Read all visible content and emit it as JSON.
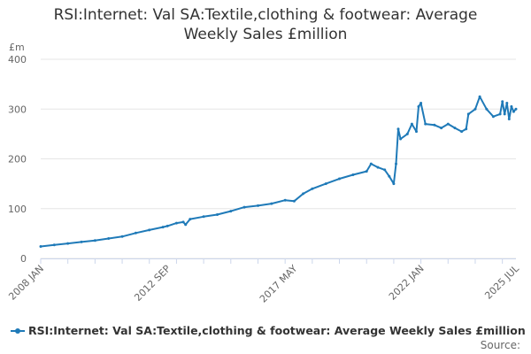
{
  "page": {
    "title_line1": "RSI:Internet: Val SA:Textile,clothing & footwear: Average",
    "title_line2": "Weekly Sales £million",
    "unit": "£m",
    "source": "Source:"
  },
  "colors": {
    "series": "#1f7ab8",
    "grid": "#e6e6e6",
    "axis": "#ccd6eb"
  },
  "chart_data": {
    "type": "line",
    "title": "RSI:Internet: Val SA:Textile,clothing & footwear: Average Weekly Sales £million",
    "ylabel": "£m",
    "ylim": [
      0,
      400
    ],
    "yticks": [
      0,
      100,
      200,
      300,
      400
    ],
    "x_tick_labels": [
      "2008 JAN",
      "2012 SEP",
      "2017 MAY",
      "2022 JAN",
      "2025 JUL"
    ],
    "legend": "bottom-left",
    "grid": true,
    "series": [
      {
        "name": "RSI:Internet: Val SA:Textile,clothing & footwear: Average Weekly Sales £million",
        "points": [
          [
            "2008-01",
            24
          ],
          [
            "2008-07",
            27
          ],
          [
            "2009-01",
            30
          ],
          [
            "2009-07",
            33
          ],
          [
            "2010-01",
            36
          ],
          [
            "2010-07",
            40
          ],
          [
            "2011-01",
            44
          ],
          [
            "2011-07",
            51
          ],
          [
            "2012-01",
            57
          ],
          [
            "2012-07",
            63
          ],
          [
            "2012-09",
            65
          ],
          [
            "2013-01",
            71
          ],
          [
            "2013-04",
            73
          ],
          [
            "2013-05",
            68
          ],
          [
            "2013-07",
            79
          ],
          [
            "2014-01",
            84
          ],
          [
            "2014-07",
            88
          ],
          [
            "2015-01",
            95
          ],
          [
            "2015-07",
            103
          ],
          [
            "2016-01",
            106
          ],
          [
            "2016-07",
            110
          ],
          [
            "2017-01",
            117
          ],
          [
            "2017-05",
            115
          ],
          [
            "2017-09",
            130
          ],
          [
            "2018-01",
            140
          ],
          [
            "2018-07",
            150
          ],
          [
            "2019-01",
            160
          ],
          [
            "2019-07",
            168
          ],
          [
            "2020-01",
            175
          ],
          [
            "2020-03",
            190
          ],
          [
            "2020-06",
            183
          ],
          [
            "2020-09",
            178
          ],
          [
            "2020-11",
            165
          ],
          [
            "2021-01",
            150
          ],
          [
            "2021-02",
            190
          ],
          [
            "2021-03",
            260
          ],
          [
            "2021-04",
            240
          ],
          [
            "2021-07",
            250
          ],
          [
            "2021-09",
            270
          ],
          [
            "2021-11",
            255
          ],
          [
            "2021-12",
            305
          ],
          [
            "2022-01",
            312
          ],
          [
            "2022-03",
            270
          ],
          [
            "2022-07",
            268
          ],
          [
            "2022-10",
            262
          ],
          [
            "2023-01",
            270
          ],
          [
            "2023-04",
            262
          ],
          [
            "2023-07",
            255
          ],
          [
            "2023-09",
            260
          ],
          [
            "2023-10",
            290
          ],
          [
            "2024-01",
            300
          ],
          [
            "2024-03",
            325
          ],
          [
            "2024-06",
            300
          ],
          [
            "2024-09",
            285
          ],
          [
            "2024-12",
            290
          ],
          [
            "2025-01",
            315
          ],
          [
            "2025-02",
            290
          ],
          [
            "2025-03",
            312
          ],
          [
            "2025-04",
            280
          ],
          [
            "2025-05",
            305
          ],
          [
            "2025-06",
            295
          ],
          [
            "2025-07",
            300
          ]
        ]
      }
    ]
  }
}
